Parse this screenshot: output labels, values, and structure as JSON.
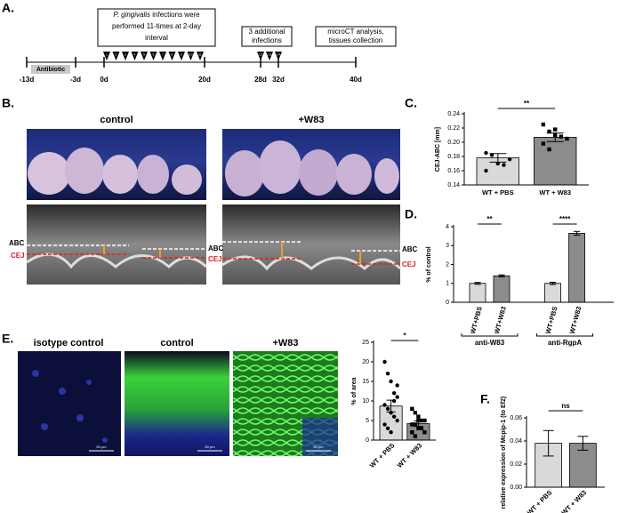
{
  "figure": {
    "panel_labels": [
      "A.",
      "B.",
      "C.",
      "D.",
      "E.",
      "F."
    ]
  },
  "timeline": {
    "days": [
      "-13d",
      "-3d",
      "0d",
      "20d",
      "28d",
      "32d",
      "40d"
    ],
    "antibiotic": "Antibiotic",
    "species": "P. gingivalis",
    "box1_lines": [
      "infections were",
      "performed 11-times at 2-day",
      "interval"
    ],
    "box2_lines": [
      "3 additional",
      "infections"
    ],
    "box3_lines": [
      "microCT analysis,",
      "tissues collection"
    ],
    "markers": [
      "1",
      "2",
      "3",
      "4",
      "5",
      "6",
      "7",
      "8",
      "9",
      "10",
      "11",
      "12",
      "13",
      "14"
    ]
  },
  "panel_b": {
    "titles": [
      "control",
      "+W83"
    ],
    "abc": "ABC",
    "cej": "CEJ"
  },
  "panel_e": {
    "titles": [
      "isotype control",
      "control",
      "+W83"
    ],
    "scale_bar": "50 µm"
  },
  "chart_data": [
    {
      "type": "bar",
      "ylabel": "CEJ-ABC [mm]",
      "categories": [
        "WT + PBS",
        "WT + W83"
      ],
      "values": [
        0.178,
        0.207
      ],
      "errors": [
        0.006,
        0.006
      ],
      "colors": [
        "#d9d9d9",
        "#8c8c8c"
      ],
      "points": [
        [
          0.185,
          0.182,
          0.17,
          0.168,
          0.176,
          0.16
        ],
        [
          0.225,
          0.215,
          0.21,
          0.208,
          0.205,
          0.198,
          0.19,
          0.218
        ]
      ],
      "ylim": [
        0.14,
        0.24
      ],
      "yticks": [
        0.14,
        0.16,
        0.18,
        {
          "value": 0.2,
          "label": "0.20"
        },
        0.22,
        0.24
      ],
      "annotations": [
        "**"
      ]
    },
    {
      "type": "bar",
      "ylabel": "% of control",
      "categories": [
        "WT+PBS",
        "WT+W83",
        "WT+PBS",
        "WT+W83"
      ],
      "values": [
        1.0,
        1.4,
        1.0,
        3.65
      ],
      "errors": [
        0.05,
        0.05,
        0.06,
        0.1
      ],
      "colors": [
        "#d9d9d9",
        "#8c8c8c",
        "#d9d9d9",
        "#8c8c8c"
      ],
      "ylim": [
        0,
        4
      ],
      "yticks": [
        0,
        1,
        2,
        3,
        4
      ],
      "groups": [
        "anti-W83",
        "anti-RgpA"
      ],
      "annotations": [
        "**",
        "****"
      ]
    },
    {
      "type": "bar",
      "ylabel": "% of area",
      "categories": [
        "WT + PBS",
        "WT + W83"
      ],
      "values": [
        8.7,
        4.2
      ],
      "errors": [
        1.5,
        0.7
      ],
      "colors": [
        "#d9d9d9",
        "#8c8c8c"
      ],
      "points": [
        [
          20,
          17,
          15,
          12,
          11,
          9,
          8,
          7,
          6,
          5,
          4,
          3,
          2,
          10,
          14
        ],
        [
          8,
          7,
          6,
          5,
          5,
          4,
          4,
          3,
          3,
          2,
          2,
          1,
          5
        ]
      ],
      "ylim": [
        0,
        25
      ],
      "yticks": [
        0,
        5,
        10,
        15,
        20,
        25
      ],
      "annotations": [
        "*"
      ]
    },
    {
      "type": "bar",
      "ylabel": "relative expression of Mcpip-1 (to Ef2)",
      "categories": [
        "WT + PBS",
        "WT + W83"
      ],
      "values": [
        0.038,
        0.038
      ],
      "errors": [
        0.011,
        0.006
      ],
      "colors": [
        "#d9d9d9",
        "#8c8c8c"
      ],
      "ylim": [
        0,
        0.06
      ],
      "yticks": [
        {
          "value": 0,
          "label": "0.00"
        },
        {
          "value": 0.02,
          "label": "0.02"
        },
        {
          "value": 0.04,
          "label": "0.04"
        },
        {
          "value": 0.06,
          "label": "0.06"
        }
      ],
      "annotations": [
        "ns"
      ]
    }
  ]
}
